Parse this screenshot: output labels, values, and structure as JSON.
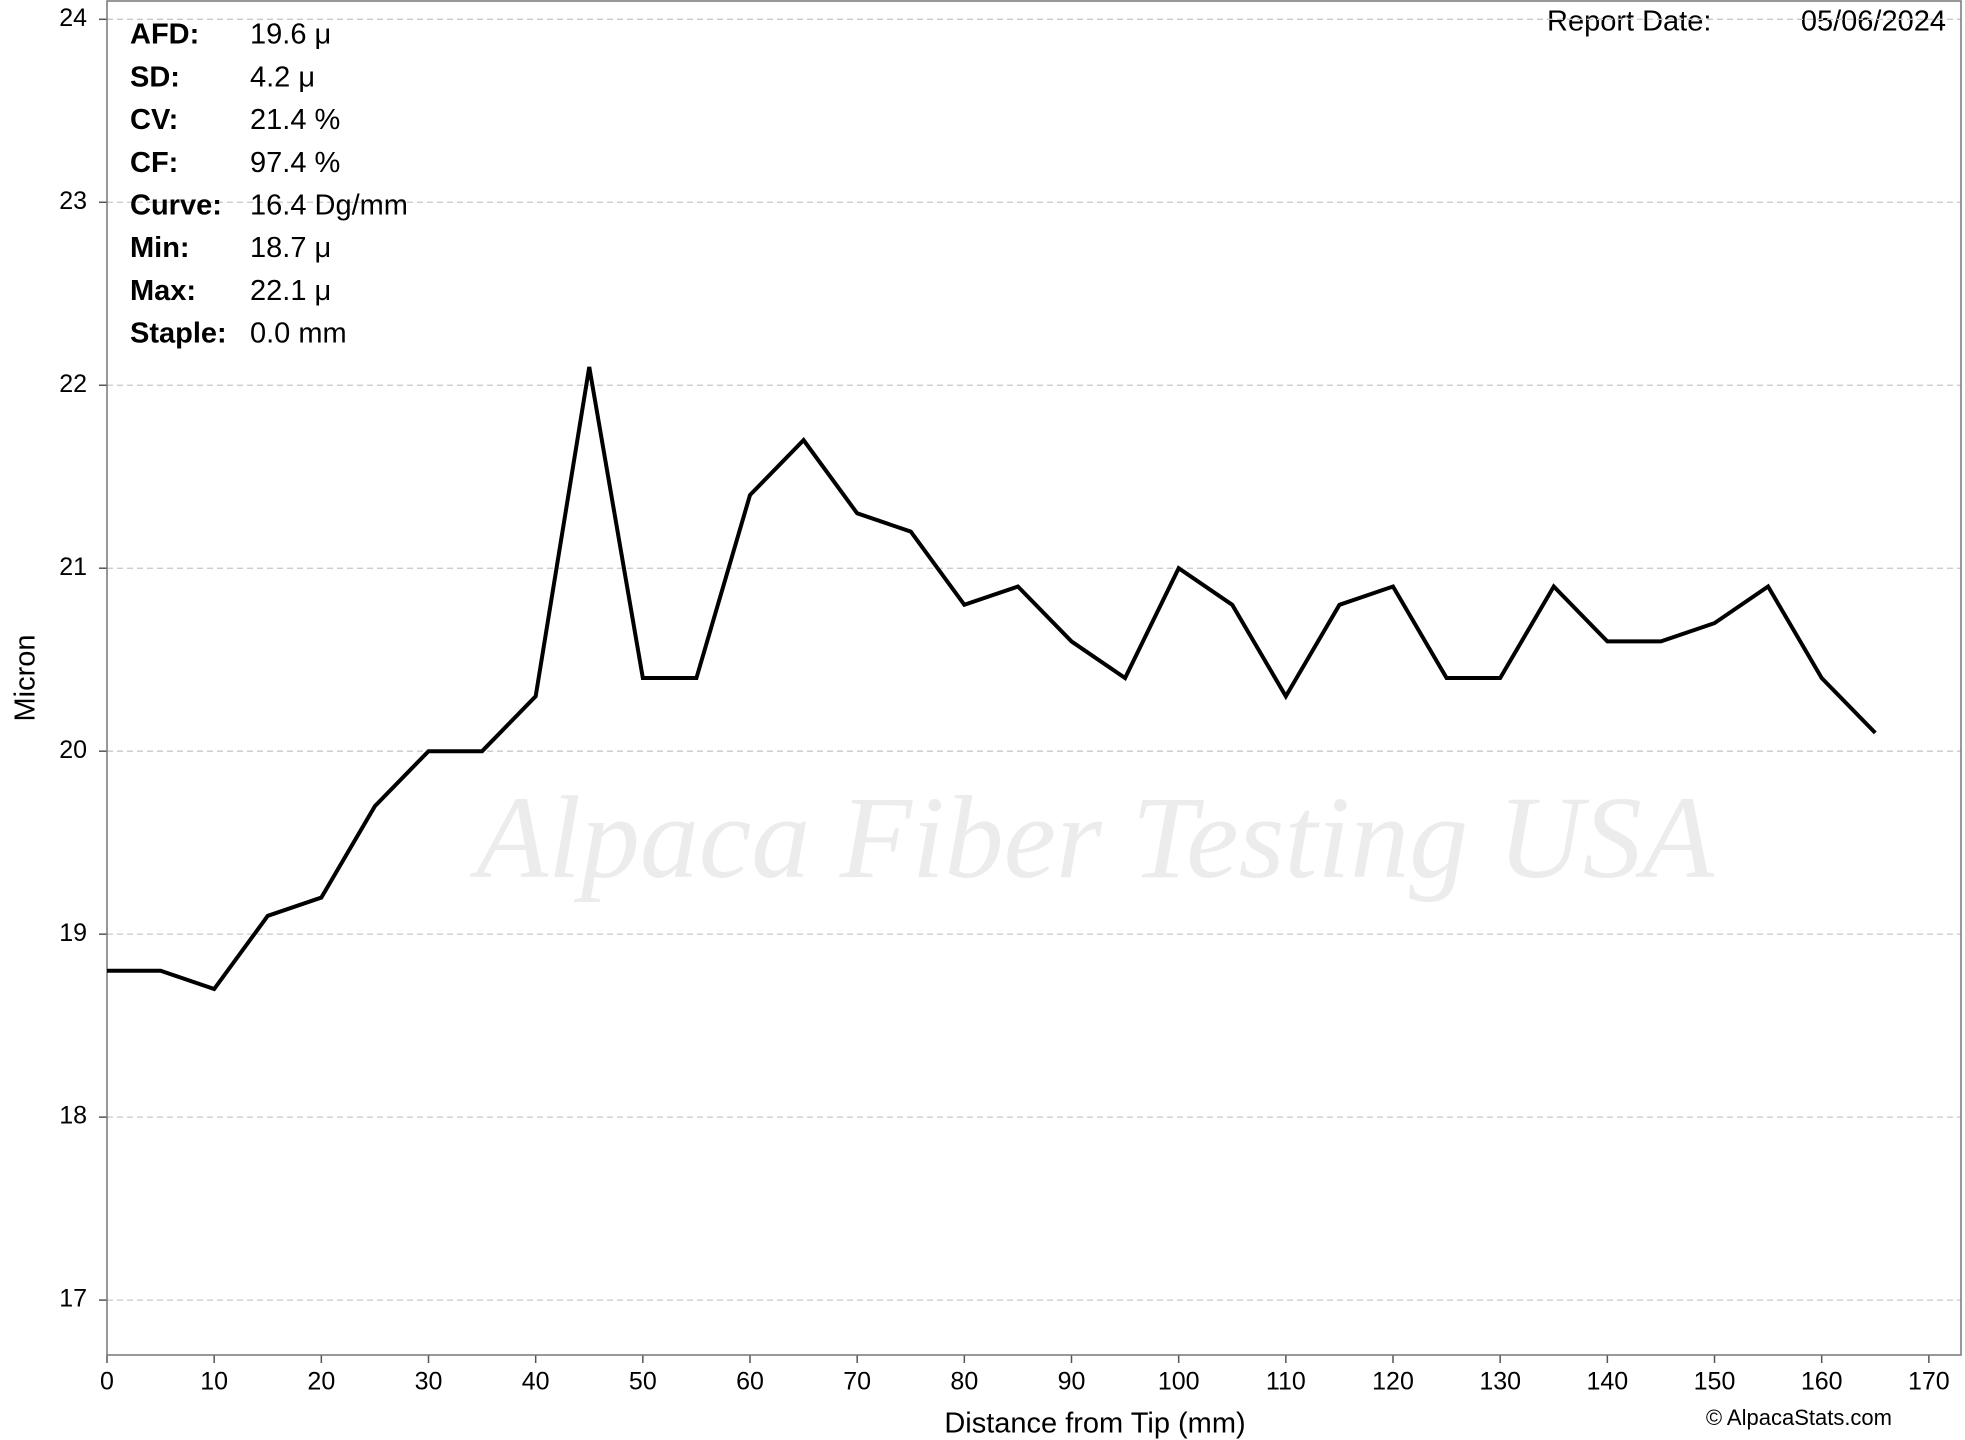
{
  "chart_data": {
    "type": "line",
    "x_label": "Distance from Tip (mm)",
    "y_label": "Micron",
    "x": [
      0,
      5,
      10,
      15,
      20,
      25,
      30,
      35,
      40,
      45,
      50,
      55,
      60,
      65,
      70,
      75,
      80,
      85,
      90,
      95,
      100,
      105,
      110,
      115,
      120,
      125,
      130,
      135,
      140,
      145,
      150,
      155,
      160,
      165
    ],
    "values": [
      18.8,
      18.8,
      18.7,
      19.1,
      19.2,
      19.7,
      20.0,
      20.0,
      20.3,
      22.1,
      20.4,
      20.4,
      21.4,
      21.7,
      21.3,
      21.2,
      20.8,
      20.9,
      20.6,
      20.4,
      21.0,
      20.8,
      20.3,
      20.8,
      20.9,
      20.4,
      20.4,
      20.9,
      20.6,
      20.6,
      20.7,
      20.9,
      20.4,
      20.1
    ],
    "color": "#000000",
    "xlim": [
      0,
      173
    ],
    "xticks": [
      0,
      10,
      20,
      30,
      40,
      50,
      60,
      70,
      80,
      90,
      100,
      110,
      120,
      130,
      140,
      150,
      160,
      170
    ],
    "ylim": [
      16.7,
      24.1
    ],
    "yticks": [
      17,
      18,
      19,
      20,
      21,
      22,
      23,
      24
    ],
    "grid": true,
    "stats": [
      {
        "label": "AFD:",
        "value": "19.6 μ"
      },
      {
        "label": "SD:",
        "value": "4.2 μ"
      },
      {
        "label": "CV:",
        "value": "21.4 %"
      },
      {
        "label": "CF:",
        "value": "97.4 %"
      },
      {
        "label": "Curve:",
        "value": "16.4 Dg/mm"
      },
      {
        "label": "Min:",
        "value": "18.7 μ"
      },
      {
        "label": "Max:",
        "value": "22.1 μ"
      },
      {
        "label": "Staple:",
        "value": "0.0 mm"
      }
    ],
    "report_date": {
      "label": "Report Date:",
      "value": "05/06/2024"
    },
    "watermark": "Alpaca Fiber Testing USA",
    "credit": "© AlpacaStats.com"
  }
}
